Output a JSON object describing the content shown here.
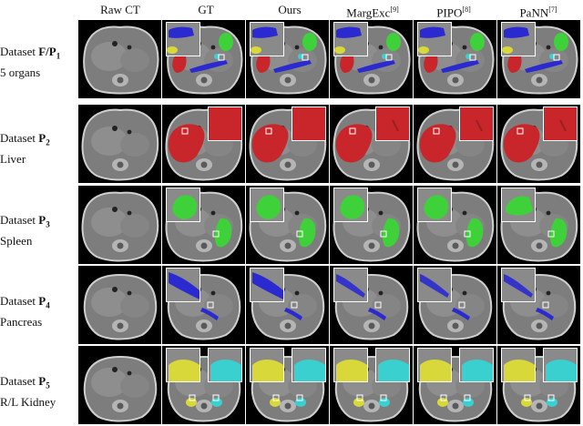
{
  "columns": [
    {
      "key": "raw",
      "label": "Raw CT",
      "sup": ""
    },
    {
      "key": "gt",
      "label": "GT",
      "sup": ""
    },
    {
      "key": "ours",
      "label": "Ours",
      "sup": ""
    },
    {
      "key": "margexc",
      "label": "MargExc",
      "sup": "[9]"
    },
    {
      "key": "pipo",
      "label": "PIPO",
      "sup": "[8]"
    },
    {
      "key": "pann",
      "label": "PaNN",
      "sup": "[7]"
    }
  ],
  "rows": [
    {
      "key": "f_p1",
      "prefix": "Dataset ",
      "bold": "F/P",
      "sub": "1",
      "line2": "5 organs"
    },
    {
      "key": "p2",
      "prefix": "Dataset ",
      "bold": "P",
      "sub": "2",
      "line2": "Liver"
    },
    {
      "key": "p3",
      "prefix": "Dataset ",
      "bold": "P",
      "sub": "3",
      "line2": "Spleen"
    },
    {
      "key": "p4",
      "prefix": "Dataset ",
      "bold": "P",
      "sub": "4",
      "line2": "Pancreas"
    },
    {
      "key": "p5",
      "prefix": "Dataset ",
      "bold": "P",
      "sub": "5",
      "line2": "R/L Kidney"
    }
  ],
  "colors": {
    "liver": "#c8262a",
    "spleen": "#3fd13a",
    "pancreas": "#2a2ad0",
    "kidney_right": "#d8d83a",
    "kidney_left": "#3ad0d0",
    "inset_border": "#ffffff",
    "ct_body": "#7d7d7d",
    "ct_background": "#000000"
  }
}
